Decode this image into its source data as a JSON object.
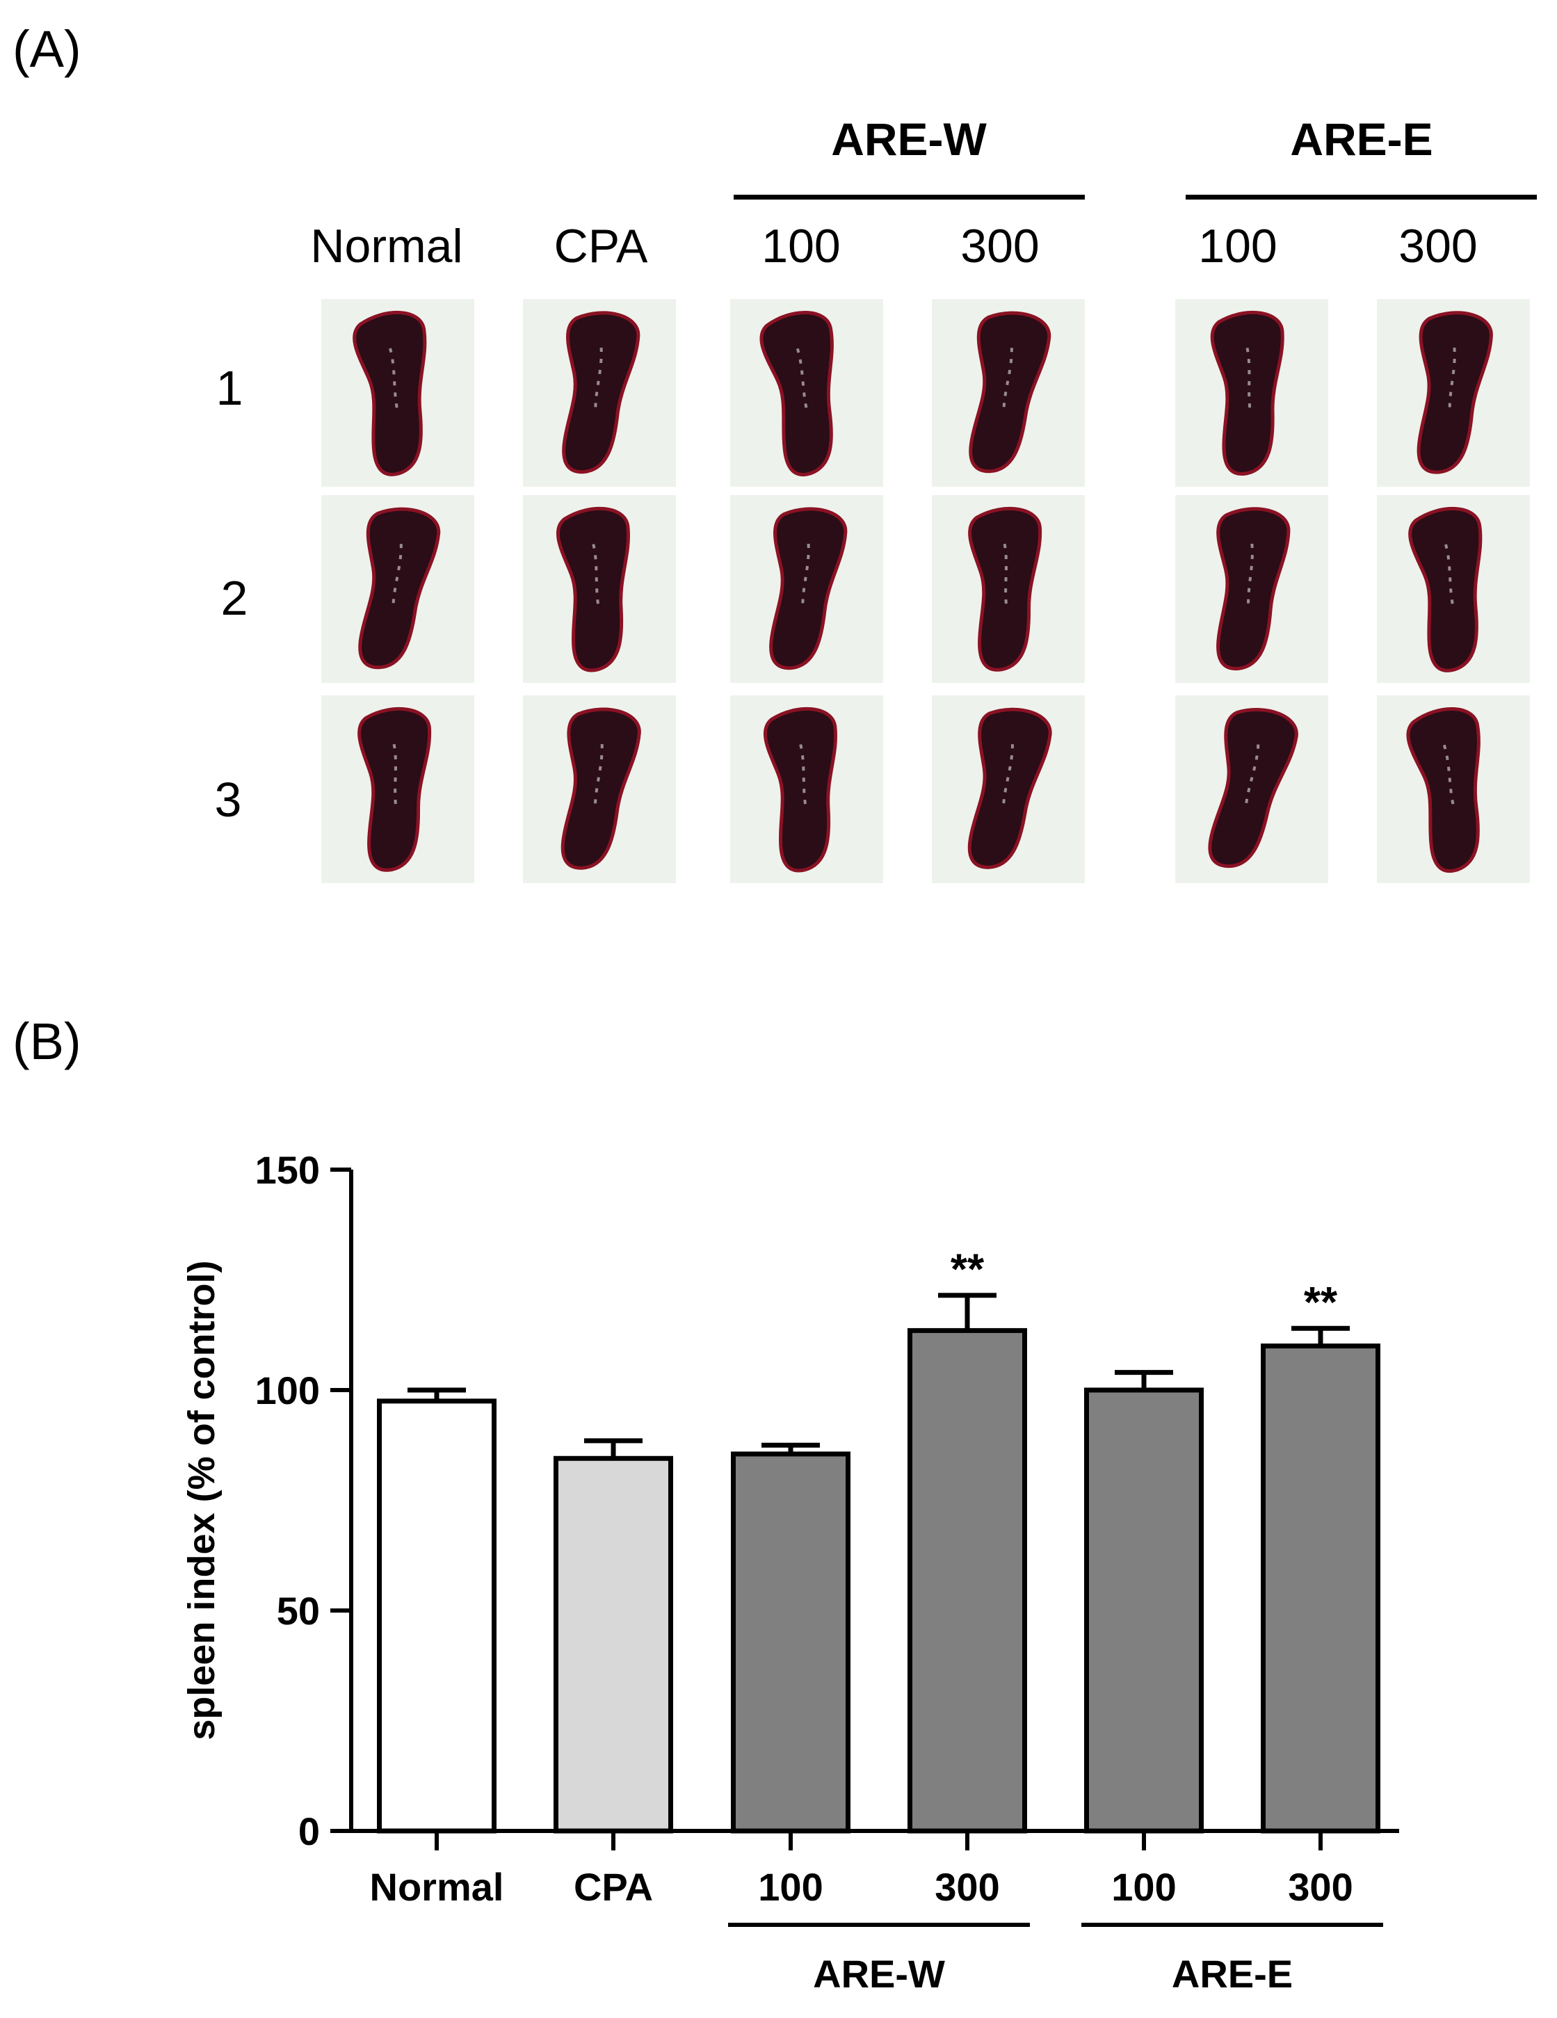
{
  "panel_a": {
    "label": "(A)",
    "group_headers": [
      "ARE-W",
      "ARE-E"
    ],
    "columns": [
      "Normal",
      "CPA",
      "100",
      "300",
      "100",
      "300"
    ],
    "rows": [
      "1",
      "2",
      "3"
    ],
    "colors": {
      "spleen": "#2a0d16",
      "spleen_rim": "#8a1224",
      "background": "#eef2ec"
    }
  },
  "panel_b": {
    "label": "(B)"
  },
  "chart_data": {
    "type": "bar",
    "title": "",
    "xlabel": "",
    "ylabel": "spleen index (% of control)",
    "ylim": [
      0,
      150
    ],
    "yticks": [
      0,
      50,
      100,
      150
    ],
    "categories": [
      "Normal",
      "CPA",
      "100",
      "300",
      "100",
      "300"
    ],
    "groups": [
      {
        "name": "ARE-W",
        "categories": [
          2,
          3
        ]
      },
      {
        "name": "ARE-E",
        "categories": [
          4,
          5
        ]
      }
    ],
    "values": [
      97.5,
      84.5,
      85.5,
      113.5,
      100,
      110
    ],
    "errors": [
      2.5,
      4,
      2,
      8,
      4,
      4
    ],
    "annotations": [
      "",
      "",
      "",
      "**",
      "",
      "**"
    ],
    "colors": [
      "#ffffff",
      "#d8d8d8",
      "#808080",
      "#808080",
      "#808080",
      "#808080"
    ]
  }
}
